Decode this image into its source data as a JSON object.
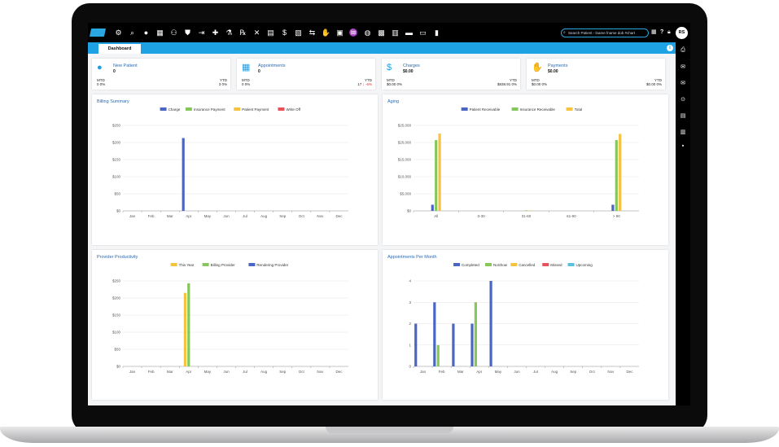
{
  "topbar": {
    "icons": [
      "gear-icon",
      "search-icon",
      "user-icon",
      "calendar-icon",
      "user-gear-icon",
      "shield-check-icon",
      "sign-in-icon",
      "clipboard-plus-icon",
      "flask-icon",
      "rx-icon",
      "cross-icon",
      "document-icon",
      "dollar-icon",
      "document-dollar-icon",
      "dollar-exchange-icon",
      "hand-dollar-icon",
      "inbox-icon",
      "hands-icon",
      "money-bag-icon",
      "calculator-icon",
      "notebook-icon",
      "car-icon",
      "money-stack-icon",
      "bar-chart-icon"
    ],
    "search_placeholder": "Search Patient - lname fname dob #chart",
    "avatar": "RS"
  },
  "tabs": [
    {
      "label": "Dashboard"
    }
  ],
  "stats": [
    {
      "title": "New Patient",
      "value": "0",
      "mtd_label": "MTD",
      "mtd": "0 0%",
      "ytd_label": "YTD",
      "ytd": "3 0%",
      "icon": "user-icon"
    },
    {
      "title": "Appointments",
      "value": "0",
      "mtd_label": "MTD",
      "mtd": "0 0%",
      "ytd_label": "YTD",
      "ytd_pre": "17 ",
      "ytd_neg": "↓ -6%",
      "icon": "calendar-icon"
    },
    {
      "title": "Charges",
      "value": "$0.00",
      "mtd_label": "MTD",
      "mtd": "$0.00 0%",
      "ytd_label": "YTD",
      "ytd": "$838.91 0%",
      "icon": "dollar-icon"
    },
    {
      "title": "Payments",
      "value": "$0.00",
      "mtd_label": "MTD",
      "mtd": "$0.00 0%",
      "ytd_label": "YTD",
      "ytd": "$0.00 0%",
      "icon": "hand-dollar-icon"
    }
  ],
  "chart_data": [
    {
      "id": "billing",
      "type": "bar",
      "title": "Billing Summary",
      "categories": [
        "Jan",
        "Feb",
        "Mar",
        "Apr",
        "May",
        "Jun",
        "Jul",
        "Aug",
        "Sep",
        "Oct",
        "Nov",
        "Dec"
      ],
      "yticks": [
        "$0",
        "$50",
        "$100",
        "$150",
        "$200",
        "$250"
      ],
      "ylim": [
        0,
        250
      ],
      "legend": "top",
      "series": [
        {
          "name": "Charge",
          "color": "#4a66c2",
          "values": [
            0,
            0,
            0,
            213,
            0,
            0,
            0,
            0,
            0,
            0,
            0,
            0
          ]
        },
        {
          "name": "Insurance Payment",
          "color": "#85c75a",
          "values": [
            0,
            0,
            0,
            0,
            0,
            0,
            0,
            0,
            0,
            0,
            0,
            0
          ]
        },
        {
          "name": "Patient Payment",
          "color": "#f5c242",
          "values": [
            0,
            0,
            0,
            0,
            0,
            0,
            0,
            0,
            0,
            0,
            0,
            0
          ]
        },
        {
          "name": "Write Off",
          "color": "#e8505b",
          "values": [
            0,
            0,
            0,
            0,
            0,
            0,
            0,
            0,
            0,
            0,
            0,
            0
          ]
        }
      ]
    },
    {
      "id": "aging",
      "type": "bar",
      "title": "Aging",
      "categories": [
        "All",
        "0-30",
        "31-60",
        "61-90",
        "> 90"
      ],
      "yticks": [
        "$0",
        "$5,000",
        "$10,000",
        "$15,000",
        "$20,000",
        "$25,000"
      ],
      "ylim": [
        0,
        25000
      ],
      "legend": "top",
      "series": [
        {
          "name": "Patient Receivable",
          "color": "#4a66c2",
          "values": [
            1800,
            0,
            0,
            0,
            1800
          ]
        },
        {
          "name": "Insurance Receivable",
          "color": "#85c75a",
          "values": [
            20700,
            0,
            150,
            0,
            20700
          ]
        },
        {
          "name": "Total",
          "color": "#f5c242",
          "values": [
            22600,
            0,
            150,
            0,
            22500
          ]
        }
      ]
    },
    {
      "id": "productivity",
      "type": "bar",
      "title": "Provider Productivity",
      "categories": [
        "Jan",
        "Feb",
        "Mar",
        "Apr",
        "May",
        "Jun",
        "Jul",
        "Aug",
        "Sep",
        "Oct",
        "Nov",
        "Dec"
      ],
      "yticks": [
        "$0",
        "$50",
        "$100",
        "$150",
        "$200",
        "$250"
      ],
      "ylim": [
        0,
        250
      ],
      "legend": "top",
      "series": [
        {
          "name": "This Year",
          "color": "#f5c242",
          "values": [
            0,
            0,
            0,
            215,
            0,
            0,
            0,
            0,
            0,
            0,
            0,
            0
          ]
        },
        {
          "name": "Billing Provider",
          "color": "#85c75a",
          "values": [
            0,
            0,
            0,
            243,
            0,
            0,
            0,
            0,
            0,
            0,
            0,
            0
          ]
        },
        {
          "name": "Rendering Provider",
          "color": "#4a66c2",
          "values": [
            0,
            0,
            0,
            0,
            0,
            0,
            0,
            0,
            0,
            0,
            0,
            0
          ]
        }
      ]
    },
    {
      "id": "appointments",
      "type": "bar",
      "title": "Appointments Per Month",
      "categories": [
        "Jan",
        "Feb",
        "Mar",
        "Apr",
        "May",
        "Jun",
        "Jul",
        "Aug",
        "Sep",
        "Oct",
        "Nov",
        "Dec"
      ],
      "yticks": [
        "0",
        "1",
        "2",
        "3",
        "4"
      ],
      "ylim": [
        0,
        4
      ],
      "legend": "top",
      "series": [
        {
          "name": "Completed",
          "color": "#4a66c2",
          "values": [
            2,
            3,
            2,
            2,
            4,
            0,
            0,
            0,
            0,
            0,
            0,
            0
          ]
        },
        {
          "name": "NoShow",
          "color": "#85c75a",
          "values": [
            0,
            1,
            0,
            3,
            0,
            0,
            0,
            0,
            0,
            0,
            0,
            0
          ]
        },
        {
          "name": "Cancelled",
          "color": "#f5c242",
          "values": [
            0,
            0,
            0,
            0,
            0,
            0,
            0,
            0,
            0,
            0,
            0,
            0
          ]
        },
        {
          "name": "Missed",
          "color": "#e8505b",
          "values": [
            0,
            0,
            0,
            0,
            0,
            0,
            0,
            0,
            0,
            0,
            0,
            0
          ]
        },
        {
          "name": "Upcoming",
          "color": "#5bc0de",
          "values": [
            0,
            0,
            0,
            0,
            0,
            0,
            0,
            0,
            0,
            0,
            0,
            0
          ]
        }
      ]
    }
  ]
}
